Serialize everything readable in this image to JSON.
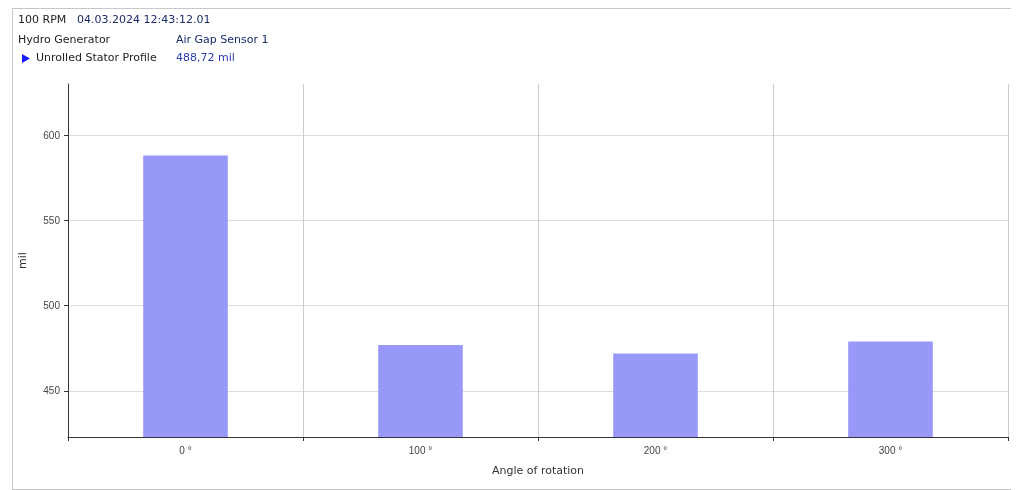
{
  "chart_data": {
    "type": "bar",
    "title": "100 RPM",
    "subtitle": "04.03.2024 12:43:12.01",
    "annotations": [
      "Hydro Generator",
      "Air Gap Sensor 1",
      "Unrolled Stator Profile",
      "488,72 mil"
    ],
    "xlabel": "Angle of rotation",
    "ylabel": "mil",
    "categories": [
      "0 °",
      "100 °",
      "200 °",
      "300 °"
    ],
    "values": [
      588,
      477,
      472,
      479
    ],
    "color": "#9898f8",
    "ylim": [
      423,
      630
    ],
    "yticks": [
      450,
      500,
      550,
      600
    ],
    "grid": true
  }
}
